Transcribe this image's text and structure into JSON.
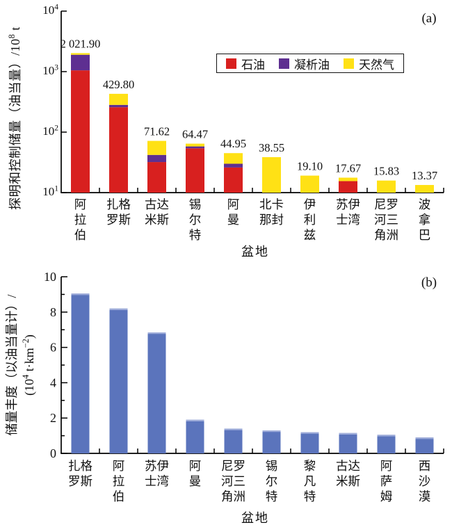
{
  "figure": {
    "panel_a_tag": "(a)",
    "panel_b_tag": "(b)"
  },
  "chart_data": [
    {
      "type": "bar",
      "stacked": true,
      "panel": "(a)",
      "y_scale": "log",
      "ylim": [
        10,
        10000
      ],
      "y_tick_exponents": [
        1,
        2,
        3,
        4
      ],
      "ylabel": "探明和控制储量（油当量）/10^8 t",
      "ylabel_parts": {
        "prefix": "探明和控制储量（油当量）/10",
        "sup": "8",
        "suffix": " t"
      },
      "xlabel": "盆地",
      "legend_position": "top-inside",
      "legend": [
        {
          "label": "石油",
          "color": "#d8201f"
        },
        {
          "label": "凝析油",
          "color": "#5e2f91"
        },
        {
          "label": "天然气",
          "color": "#ffe115"
        }
      ],
      "categories": [
        "阿拉伯",
        "扎格罗斯",
        "古达米斯",
        "锡尔特",
        "阿曼",
        "北卡那封",
        "伊利兹",
        "苏伊士湾",
        "尼罗河三角洲",
        "波拿巴"
      ],
      "category_lines": [
        [
          "阿",
          "拉",
          "伯"
        ],
        [
          "扎格",
          "罗斯"
        ],
        [
          "古达",
          "米斯"
        ],
        [
          "锡",
          "尔",
          "特"
        ],
        [
          "阿",
          "曼"
        ],
        [
          "北卡",
          "那封"
        ],
        [
          "伊",
          "利",
          "兹"
        ],
        [
          "苏伊",
          "士湾"
        ],
        [
          "尼罗",
          "河三",
          "角洲"
        ],
        [
          "波",
          "拿",
          "巴"
        ]
      ],
      "totals": [
        2021.9,
        429.8,
        71.62,
        64.47,
        44.95,
        38.55,
        19.1,
        17.67,
        15.83,
        13.37
      ],
      "total_labels": [
        "2 021.90",
        "429.80",
        "71.62",
        "64.47",
        "44.95",
        "38.55",
        "19.10",
        "17.67",
        "15.83",
        "13.37"
      ],
      "series": [
        {
          "name": "石油",
          "key": "oil",
          "values": [
            1050,
            258,
            32,
            54,
            26,
            0,
            0,
            15.5,
            0,
            0
          ]
        },
        {
          "name": "凝析油",
          "key": "condensate",
          "values": [
            850,
            24,
            10,
            4,
            4,
            0,
            0,
            0,
            0,
            0
          ]
        },
        {
          "name": "天然气",
          "key": "gas",
          "values": [
            121.9,
            147.8,
            29.62,
            6.47,
            14.95,
            38.55,
            19.1,
            2.17,
            15.83,
            13.37
          ]
        }
      ]
    },
    {
      "type": "bar",
      "stacked": false,
      "panel": "(b)",
      "y_scale": "linear",
      "ylim": [
        0,
        10
      ],
      "y_major_step": 2,
      "y_minor_step": 1,
      "y_major_ticks": [
        0,
        2,
        4,
        6,
        8,
        10
      ],
      "ylabel": "储量丰度（以油当量计）/(10^4 t·km^-2)",
      "ylabel_parts": {
        "line1": "储量丰度（以油当量计）/",
        "line2_a": "(10",
        "line2_sup1": "4",
        "line2_b": " t·km",
        "line2_sup2": "−2",
        "line2_c": ")"
      },
      "xlabel": "盆地",
      "bar_color": "#5b74bc",
      "bar_top_highlight": "#9fadda",
      "categories": [
        "扎格罗斯",
        "阿拉伯",
        "苏伊士湾",
        "阿曼",
        "尼罗河三角洲",
        "锡尔特",
        "黎凡特",
        "古达米斯",
        "阿萨姆",
        "西沙漠"
      ],
      "category_lines": [
        [
          "扎格",
          "罗斯"
        ],
        [
          "阿",
          "拉",
          "伯"
        ],
        [
          "苏伊",
          "士湾"
        ],
        [
          "阿",
          "曼"
        ],
        [
          "尼罗",
          "河三",
          "角洲"
        ],
        [
          "锡",
          "尔",
          "特"
        ],
        [
          "黎",
          "凡",
          "特"
        ],
        [
          "古达",
          "米斯"
        ],
        [
          "阿",
          "萨",
          "姆"
        ],
        [
          "西",
          "沙",
          "漠"
        ]
      ],
      "values": [
        9.05,
        8.2,
        6.85,
        1.9,
        1.4,
        1.3,
        1.2,
        1.15,
        1.05,
        0.9
      ]
    }
  ],
  "style": {
    "axis_color": "#000000",
    "text_color": "#111111",
    "background": "#ffffff"
  }
}
